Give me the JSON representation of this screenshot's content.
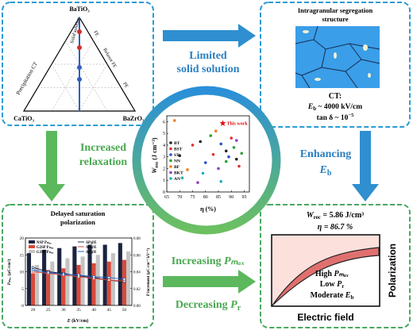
{
  "ternary": {
    "top": "BaTiO₃",
    "left": "CaTiO₃",
    "right": "BaZrO₃",
    "edge_labels": {
      "solid": "Solid solution",
      "fe": "FE",
      "relaxor": "Relaxor FE",
      "pe": "PE",
      "precip": "Precipitation CT"
    }
  },
  "arrow_top": [
    "Limited",
    "solid solution"
  ],
  "arrow_left": [
    "Increased",
    "relaxation"
  ],
  "arrow_right": {
    "text": "Enhancing",
    "main": "E",
    "sub": "b"
  },
  "arrow_bottom": {
    "upper": {
      "text": "Increasing ",
      "main": "Pₘₐₓ"
    },
    "lower": {
      "text": "Decreasing ",
      "main": "P",
      "sub": "r"
    }
  },
  "microstructure": {
    "title": [
      "Intragranular segregation",
      "structure"
    ],
    "ct": "CT:",
    "eb": {
      "main": "E",
      "sub": "b",
      "rest": " ~ 4000 kV/cm"
    },
    "tan": {
      "main": "tan δ ~ 10",
      "sup": "−5"
    }
  },
  "center_chart": {
    "type": "scatter",
    "x_label": "η (%)",
    "y_label": {
      "main": "W",
      "sub": "rec",
      "unit": " (J cm⁻³)"
    },
    "xlim": [
      65,
      97
    ],
    "xticks": [
      65,
      70,
      75,
      80,
      85,
      90,
      95
    ],
    "ylim": [
      0,
      6.5
    ],
    "yticks": [
      0,
      1,
      2,
      3,
      4,
      5,
      6
    ],
    "series": [
      {
        "name": "BT",
        "color": "#222222",
        "x": [
          70,
          78,
          88,
          92
        ],
        "values": [
          3.1,
          4.3,
          3.5,
          2.8
        ]
      },
      {
        "name": "BST",
        "color": "#e03030",
        "x": [
          75,
          83,
          90,
          93
        ],
        "values": [
          4.0,
          3.2,
          4.6,
          2.2
        ]
      },
      {
        "name": "ST",
        "color": "#3050d0",
        "x": [
          80,
          86,
          89
        ],
        "values": [
          2.5,
          4.1,
          3.0
        ]
      },
      {
        "name": "NN",
        "color": "#30a030",
        "x": [
          82,
          88,
          91,
          94
        ],
        "values": [
          4.8,
          2.6,
          3.8,
          3.3
        ]
      },
      {
        "name": "BF",
        "color": "#f08020",
        "x": [
          68,
          73,
          84
        ],
        "values": [
          6.1,
          1.9,
          5.2
        ]
      },
      {
        "name": "BKT",
        "color": "#9040c0",
        "x": [
          77,
          85,
          92
        ],
        "values": [
          0.8,
          2.0,
          4.4
        ]
      },
      {
        "name": "AN",
        "color": "#20b0c0",
        "x": [
          71,
          79,
          86
        ],
        "values": [
          1.2,
          1.6,
          0.9
        ]
      }
    ],
    "this_work": {
      "label": "This work",
      "x": 86.7,
      "value": 5.86,
      "color": "#e01010"
    }
  },
  "bar_chart": {
    "type": "bar",
    "title": [
      "Delayed saturation",
      "polarization"
    ],
    "categories": [
      20,
      25,
      30,
      35,
      40,
      45,
      50
    ],
    "x_label": {
      "main": "E",
      "unit": " (kV/cm)"
    },
    "y_label": {
      "main": "Pₘₐₓ",
      "unit": " (μC/cm²)"
    },
    "y2_label": "P increment (μC cm⁻² kV⁻¹)",
    "ylim": [
      0,
      20
    ],
    "yticks": [
      0,
      5,
      10,
      15,
      20
    ],
    "y2lim": [
      0,
      0.08
    ],
    "y2ticks": [
      {
        "value": 0,
        "label": "0.00"
      },
      {
        "value": 0.02,
        "label": "0.02"
      },
      {
        "value": 0.04,
        "label": "0.04"
      },
      {
        "value": 0.06,
        "label": "0.06"
      },
      {
        "value": 0.08,
        "label": "0.08"
      }
    ],
    "series": [
      {
        "name": "NSP Pₘₐₓ",
        "color": "#1c2340",
        "values": [
          15.5,
          16.5,
          17,
          17.5,
          18,
          18,
          18.5
        ]
      },
      {
        "name": "G2SP Pₘₐₓ",
        "color": "#d84a3a",
        "values": [
          9.5,
          10.5,
          11,
          12,
          12.5,
          13,
          13.5
        ]
      },
      {
        "name": "G3SP Pₘₐₓ",
        "color": "#c4c4c4",
        "values": [
          12,
          13,
          14,
          14.5,
          15,
          15.5,
          16
        ]
      },
      {
        "name": "ΔP@E",
        "color": "#1c2340",
        "axis": "y2",
        "values": [
          0.045,
          0.04,
          0.038,
          0.035,
          0.033,
          0.03,
          0.028
        ]
      },
      {
        "name": "ΔP@E",
        "color": "#d84a3a",
        "axis": "y2",
        "values": [
          0.04,
          0.038,
          0.036,
          0.034,
          0.032,
          0.03,
          0.029
        ]
      },
      {
        "name": "ΔP@E",
        "color": "#2060c0",
        "axis": "y2",
        "values": [
          0.042,
          0.039,
          0.037,
          0.036,
          0.034,
          0.033,
          0.031
        ]
      }
    ]
  },
  "result": {
    "w": {
      "main": "W",
      "sub": "rec",
      "rest": " = 5.86 J/cm³"
    },
    "eta": "η = 86.7 %",
    "high": {
      "text": "High ",
      "main": "Pₘₐₓ"
    },
    "low": {
      "text": "Low ",
      "main": "P",
      "sub": "r"
    },
    "moderate": {
      "text": "Moderate ",
      "main": "E",
      "sub": "b"
    },
    "y_axis": "Polarization",
    "x_axis": "Electric field"
  }
}
